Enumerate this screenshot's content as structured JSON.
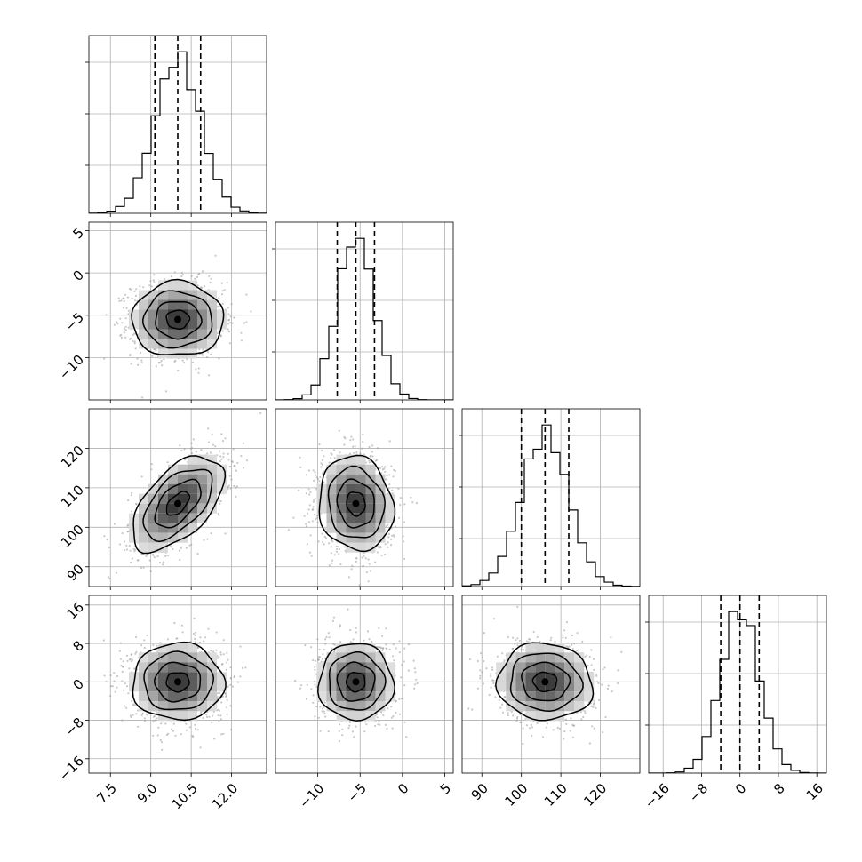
{
  "chart_data": {
    "type": "corner",
    "parameters": [
      {
        "mean": 10.0,
        "std": 0.85,
        "range": [
          6.7,
          13.3
        ],
        "ticks": [
          7.5,
          9.0,
          10.5,
          12.0
        ],
        "tick_labels": [
          "7.5",
          "9.0",
          "10.5",
          "12.0"
        ],
        "quantiles": [
          9.15,
          10.0,
          10.85
        ]
      },
      {
        "mean": -5.5,
        "std": 2.2,
        "range": [
          -15.0,
          6.0
        ],
        "ticks": [
          -10,
          -5,
          0,
          5
        ],
        "tick_labels": [
          "−10",
          "−5",
          "0",
          "5"
        ],
        "quantiles": [
          -7.7,
          -5.5,
          -3.3
        ]
      },
      {
        "mean": 106.0,
        "std": 6.0,
        "range": [
          85.0,
          130.0
        ],
        "ticks": [
          90,
          100,
          110,
          120
        ],
        "tick_labels": [
          "90",
          "100",
          "110",
          "120"
        ],
        "quantiles": [
          100.0,
          106.0,
          112.0
        ]
      },
      {
        "mean": 0.0,
        "std": 4.0,
        "range": [
          -19.0,
          18.0
        ],
        "ticks": [
          -16,
          -8,
          0,
          8,
          16
        ],
        "tick_labels": [
          "−16",
          "−8",
          "0",
          "8",
          "16"
        ],
        "quantiles": [
          -4.0,
          0.0,
          4.0
        ]
      }
    ],
    "correlations": [
      {
        "i": 1,
        "j": 0,
        "rho": 0.0
      },
      {
        "i": 2,
        "j": 0,
        "rho": 0.55
      },
      {
        "i": 2,
        "j": 1,
        "rho": -0.1
      },
      {
        "i": 3,
        "j": 0,
        "rho": 0.0
      },
      {
        "i": 3,
        "j": 1,
        "rho": 0.0
      },
      {
        "i": 3,
        "j": 2,
        "rho": -0.05
      }
    ],
    "contour_levels_sigma": [
      0.5,
      1.0,
      1.5,
      2.0
    ],
    "grid": true,
    "legend": "none"
  }
}
